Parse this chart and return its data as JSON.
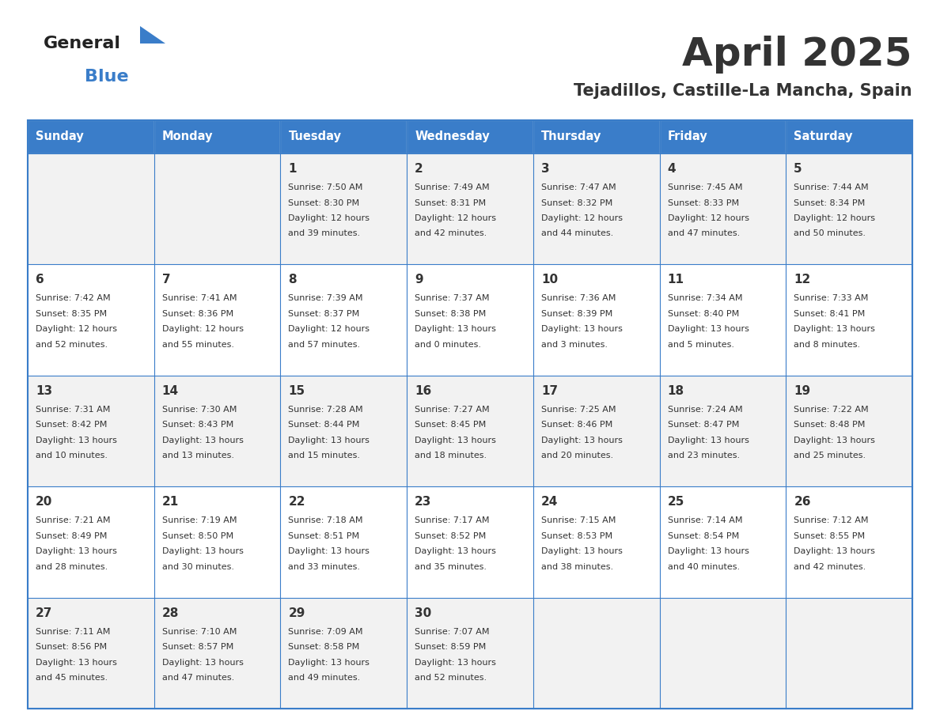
{
  "title": "April 2025",
  "subtitle": "Tejadillos, Castille-La Mancha, Spain",
  "header_bg_color": "#3A7DC9",
  "header_text_color": "#FFFFFF",
  "cell_bg_even": "#F2F2F2",
  "cell_bg_odd": "#FFFFFF",
  "border_color": "#3A7DC9",
  "text_color": "#333333",
  "day_headers": [
    "Sunday",
    "Monday",
    "Tuesday",
    "Wednesday",
    "Thursday",
    "Friday",
    "Saturday"
  ],
  "weeks": [
    [
      {
        "day": "",
        "info": ""
      },
      {
        "day": "",
        "info": ""
      },
      {
        "day": "1",
        "info": "Sunrise: 7:50 AM\nSunset: 8:30 PM\nDaylight: 12 hours\nand 39 minutes."
      },
      {
        "day": "2",
        "info": "Sunrise: 7:49 AM\nSunset: 8:31 PM\nDaylight: 12 hours\nand 42 minutes."
      },
      {
        "day": "3",
        "info": "Sunrise: 7:47 AM\nSunset: 8:32 PM\nDaylight: 12 hours\nand 44 minutes."
      },
      {
        "day": "4",
        "info": "Sunrise: 7:45 AM\nSunset: 8:33 PM\nDaylight: 12 hours\nand 47 minutes."
      },
      {
        "day": "5",
        "info": "Sunrise: 7:44 AM\nSunset: 8:34 PM\nDaylight: 12 hours\nand 50 minutes."
      }
    ],
    [
      {
        "day": "6",
        "info": "Sunrise: 7:42 AM\nSunset: 8:35 PM\nDaylight: 12 hours\nand 52 minutes."
      },
      {
        "day": "7",
        "info": "Sunrise: 7:41 AM\nSunset: 8:36 PM\nDaylight: 12 hours\nand 55 minutes."
      },
      {
        "day": "8",
        "info": "Sunrise: 7:39 AM\nSunset: 8:37 PM\nDaylight: 12 hours\nand 57 minutes."
      },
      {
        "day": "9",
        "info": "Sunrise: 7:37 AM\nSunset: 8:38 PM\nDaylight: 13 hours\nand 0 minutes."
      },
      {
        "day": "10",
        "info": "Sunrise: 7:36 AM\nSunset: 8:39 PM\nDaylight: 13 hours\nand 3 minutes."
      },
      {
        "day": "11",
        "info": "Sunrise: 7:34 AM\nSunset: 8:40 PM\nDaylight: 13 hours\nand 5 minutes."
      },
      {
        "day": "12",
        "info": "Sunrise: 7:33 AM\nSunset: 8:41 PM\nDaylight: 13 hours\nand 8 minutes."
      }
    ],
    [
      {
        "day": "13",
        "info": "Sunrise: 7:31 AM\nSunset: 8:42 PM\nDaylight: 13 hours\nand 10 minutes."
      },
      {
        "day": "14",
        "info": "Sunrise: 7:30 AM\nSunset: 8:43 PM\nDaylight: 13 hours\nand 13 minutes."
      },
      {
        "day": "15",
        "info": "Sunrise: 7:28 AM\nSunset: 8:44 PM\nDaylight: 13 hours\nand 15 minutes."
      },
      {
        "day": "16",
        "info": "Sunrise: 7:27 AM\nSunset: 8:45 PM\nDaylight: 13 hours\nand 18 minutes."
      },
      {
        "day": "17",
        "info": "Sunrise: 7:25 AM\nSunset: 8:46 PM\nDaylight: 13 hours\nand 20 minutes."
      },
      {
        "day": "18",
        "info": "Sunrise: 7:24 AM\nSunset: 8:47 PM\nDaylight: 13 hours\nand 23 minutes."
      },
      {
        "day": "19",
        "info": "Sunrise: 7:22 AM\nSunset: 8:48 PM\nDaylight: 13 hours\nand 25 minutes."
      }
    ],
    [
      {
        "day": "20",
        "info": "Sunrise: 7:21 AM\nSunset: 8:49 PM\nDaylight: 13 hours\nand 28 minutes."
      },
      {
        "day": "21",
        "info": "Sunrise: 7:19 AM\nSunset: 8:50 PM\nDaylight: 13 hours\nand 30 minutes."
      },
      {
        "day": "22",
        "info": "Sunrise: 7:18 AM\nSunset: 8:51 PM\nDaylight: 13 hours\nand 33 minutes."
      },
      {
        "day": "23",
        "info": "Sunrise: 7:17 AM\nSunset: 8:52 PM\nDaylight: 13 hours\nand 35 minutes."
      },
      {
        "day": "24",
        "info": "Sunrise: 7:15 AM\nSunset: 8:53 PM\nDaylight: 13 hours\nand 38 minutes."
      },
      {
        "day": "25",
        "info": "Sunrise: 7:14 AM\nSunset: 8:54 PM\nDaylight: 13 hours\nand 40 minutes."
      },
      {
        "day": "26",
        "info": "Sunrise: 7:12 AM\nSunset: 8:55 PM\nDaylight: 13 hours\nand 42 minutes."
      }
    ],
    [
      {
        "day": "27",
        "info": "Sunrise: 7:11 AM\nSunset: 8:56 PM\nDaylight: 13 hours\nand 45 minutes."
      },
      {
        "day": "28",
        "info": "Sunrise: 7:10 AM\nSunset: 8:57 PM\nDaylight: 13 hours\nand 47 minutes."
      },
      {
        "day": "29",
        "info": "Sunrise: 7:09 AM\nSunset: 8:58 PM\nDaylight: 13 hours\nand 49 minutes."
      },
      {
        "day": "30",
        "info": "Sunrise: 7:07 AM\nSunset: 8:59 PM\nDaylight: 13 hours\nand 52 minutes."
      },
      {
        "day": "",
        "info": ""
      },
      {
        "day": "",
        "info": ""
      },
      {
        "day": "",
        "info": ""
      }
    ]
  ],
  "logo_text1": "General",
  "logo_text2": "Blue",
  "logo_color1": "#222222",
  "logo_color2": "#3A7DC9",
  "tri_color": "#3A7DC9",
  "figsize": [
    11.88,
    9.18
  ],
  "dpi": 100
}
